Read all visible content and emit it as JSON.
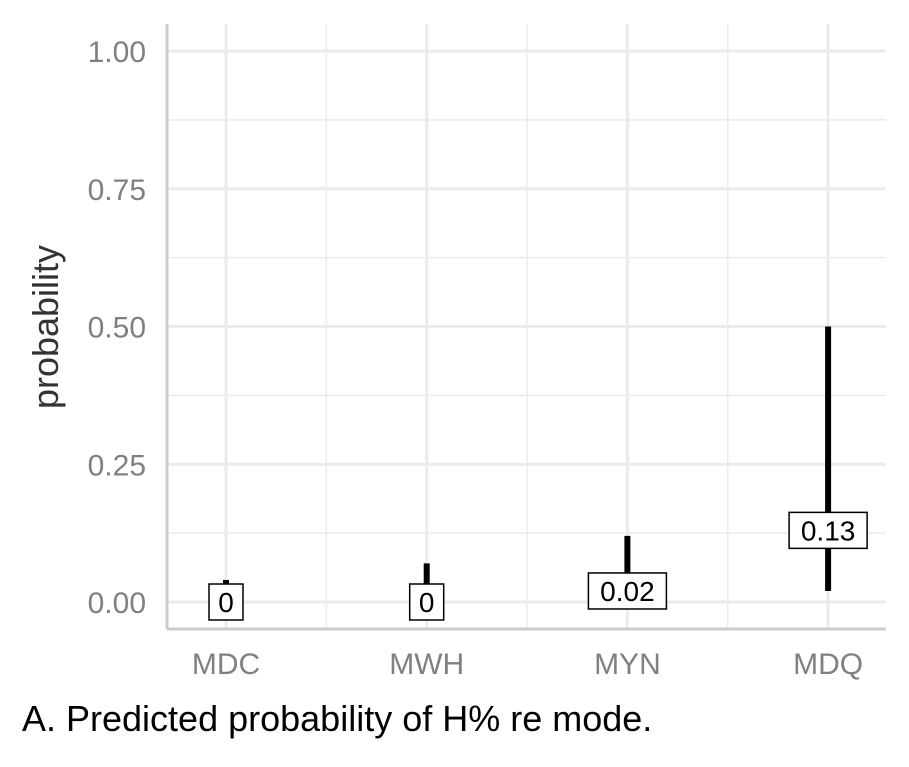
{
  "chart_data": {
    "type": "errorbar",
    "categories": [
      "MDC",
      "MWH",
      "MYN",
      "MDQ"
    ],
    "series": [
      {
        "estimates": [
          0,
          0,
          0.02,
          0.13
        ],
        "estimate_labels": [
          "0",
          "0",
          "0.02",
          "0.13"
        ],
        "lower": [
          0,
          0,
          0.0,
          0.02
        ],
        "upper": [
          0.04,
          0.07,
          0.12,
          0.5
        ]
      }
    ],
    "ylabel": "probability",
    "xlabel": "",
    "ylim": [
      -0.05,
      1.05
    ],
    "yticks": [
      0.0,
      0.25,
      0.5,
      0.75,
      1.0
    ],
    "ytick_labels": [
      "0.00",
      "0.25",
      "0.50",
      "0.75",
      "1.00"
    ],
    "grid": true,
    "colors": {
      "interval": "#000000",
      "grid": "#ebebeb",
      "axis": "#cccccc",
      "tick_text": "#808080"
    }
  },
  "caption": "A. Predicted probability of H% re mode."
}
